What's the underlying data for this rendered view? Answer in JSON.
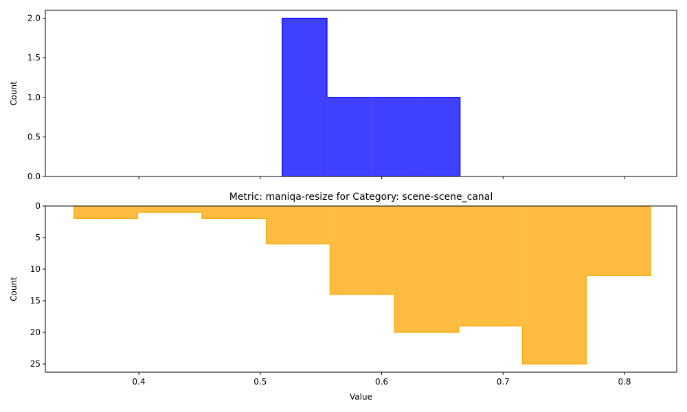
{
  "chart_data": [
    {
      "type": "histogram",
      "title": "",
      "xlabel": "",
      "ylabel": "Count",
      "xlim": [
        0.323,
        0.843
      ],
      "ylim": [
        0,
        2.1
      ],
      "x_tick_labels_shown": false,
      "yticks": [
        0.0,
        0.5,
        1.0,
        1.5,
        2.0
      ],
      "ytick_labels": [
        "0.0",
        "0.5",
        "1.0",
        "1.5",
        "2.0"
      ],
      "bin_edges": [
        0.518,
        0.555,
        0.5916,
        0.628,
        0.6646
      ],
      "counts": [
        2,
        1,
        1,
        1
      ],
      "color": "#0000ff",
      "alpha": 0.75
    },
    {
      "type": "histogram",
      "title": "Metric: maniqa-resize for Category: scene-scene_canal",
      "xlabel": "Value",
      "ylabel": "Count",
      "xlim": [
        0.323,
        0.843
      ],
      "ylim": [
        26.3,
        0
      ],
      "y_inverted": true,
      "xticks": [
        0.4,
        0.5,
        0.6,
        0.7,
        0.8
      ],
      "xtick_labels": [
        "0.4",
        "0.5",
        "0.6",
        "0.7",
        "0.8"
      ],
      "yticks": [
        0,
        5,
        10,
        15,
        20,
        25
      ],
      "ytick_labels": [
        "0",
        "5",
        "10",
        "15",
        "20",
        "25"
      ],
      "bin_edges": [
        0.3465,
        0.399,
        0.452,
        0.505,
        0.5575,
        0.6105,
        0.6635,
        0.716,
        0.7685,
        0.8215
      ],
      "counts": [
        2,
        1,
        2,
        6,
        14,
        20,
        19,
        25,
        11
      ],
      "color": "#ffa500",
      "alpha": 0.75
    }
  ]
}
